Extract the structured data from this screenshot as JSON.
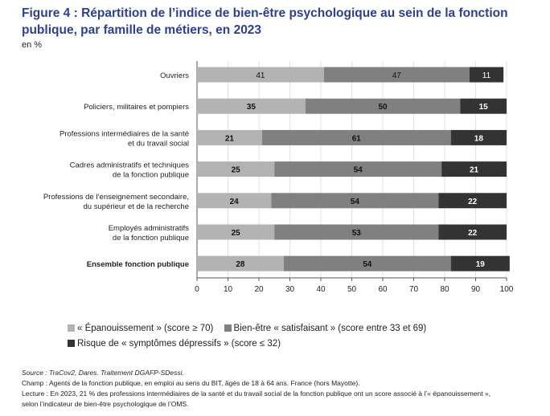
{
  "chart_data": {
    "type": "bar",
    "orientation": "horizontal",
    "stacked": true,
    "title": "Figure 4 : Répartition de l’indice de bien-être psychologique au sein de la fonction publique, par famille de métiers, en 2023",
    "unit": "en %",
    "categories": [
      [
        "Ouvriers"
      ],
      [
        "Policiers, militaires et pompiers"
      ],
      [
        "Professions intermédiaires de la santé",
        "et du travail social"
      ],
      [
        "Cadres administratifs et techniques",
        "de la fonction publique"
      ],
      [
        "Professions de l’enseignement secondaire,",
        "du supérieur et de la recherche"
      ],
      [
        "Employés administratifs",
        "de la fonction publique"
      ],
      [
        "Ensemble fonction publique"
      ]
    ],
    "series": [
      {
        "name": "« Épanouissement » (score ≥ 70)",
        "color": "#b3b3b3",
        "values": [
          41,
          35,
          21,
          25,
          24,
          25,
          28
        ]
      },
      {
        "name": "Bien-être « satisfaisant » (score entre 33 et 69)",
        "color": "#808080",
        "values": [
          47,
          50,
          61,
          54,
          54,
          53,
          54
        ]
      },
      {
        "name": "Risque de « symptômes dépressifs » (score ≤ 32)",
        "color": "#333333",
        "values": [
          11,
          15,
          18,
          21,
          22,
          22,
          19
        ]
      }
    ],
    "xlim": [
      0,
      100
    ],
    "xticks": [
      0,
      10,
      20,
      30,
      40,
      50,
      60,
      70,
      80,
      90,
      100
    ],
    "grid": true,
    "legend_position": "bottom"
  },
  "notes": {
    "source": "Source : TraCov2, Dares. Traitement DGAFP-SDessi.",
    "champ": "Champ : Agents de la fonction publique, en emploi au sens du BIT, âgés de 18 à 64 ans. France (hors Mayotte).",
    "lecture1": "Lecture : En 2023, 21 % des professions intermédiaires de la santé et du travail social de la fonction publique ont un score associé à l’« épanouissement »,",
    "lecture2": "selon l’indicateur de bien-être psychologique de l’OMS."
  }
}
